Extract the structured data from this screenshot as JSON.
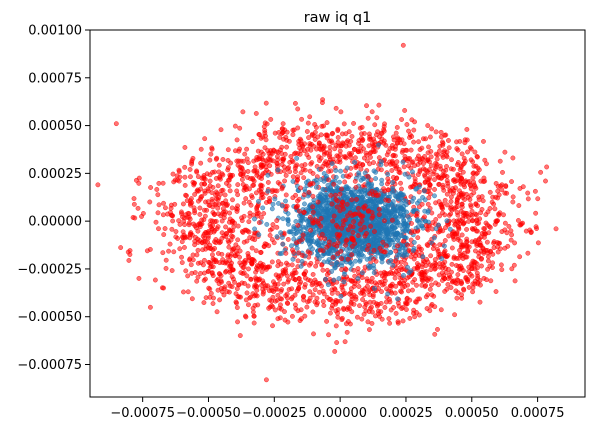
{
  "chart_data": {
    "type": "scatter",
    "title": "raw iq q1",
    "xlabel": "",
    "ylabel": "",
    "xlim": [
      -0.00095,
      0.00093
    ],
    "ylim": [
      -0.00092,
      0.001
    ],
    "grid": false,
    "xticks": [
      {
        "value": -0.00075,
        "label": "−0.00075"
      },
      {
        "value": -0.0005,
        "label": "−0.00050"
      },
      {
        "value": -0.00025,
        "label": "−0.00025"
      },
      {
        "value": 0.0,
        "label": "0.00000"
      },
      {
        "value": 0.00025,
        "label": "0.00025"
      },
      {
        "value": 0.0005,
        "label": "0.00050"
      },
      {
        "value": 0.00075,
        "label": "0.00075"
      }
    ],
    "yticks": [
      {
        "value": 0.001,
        "label": "0.00100"
      },
      {
        "value": 0.00075,
        "label": "0.00075"
      },
      {
        "value": 0.0005,
        "label": "0.00050"
      },
      {
        "value": 0.00025,
        "label": "0.00025"
      },
      {
        "value": 0.0,
        "label": "0.00000"
      },
      {
        "value": -0.00025,
        "label": "−0.00025"
      },
      {
        "value": -0.0005,
        "label": "−0.00050"
      },
      {
        "value": -0.00075,
        "label": "−0.00075"
      }
    ],
    "series": [
      {
        "color": "#ff0000",
        "alpha": 0.55,
        "center": [
          0.0,
          0.0
        ],
        "radius_x": 0.00052,
        "radius_y": 0.0004,
        "spread": 0.00011,
        "count": 2200
      },
      {
        "color": "#1f77b4",
        "alpha": 0.6,
        "center": [
          5e-05,
          0.0
        ],
        "sigma": [
          0.00012,
          0.00011
        ],
        "count": 1600
      }
    ],
    "extra_red_points": [
      {
        "x": -0.00092,
        "y": 0.00019
      },
      {
        "x": -0.00085,
        "y": 0.00051
      },
      {
        "x": 0.00024,
        "y": 0.00092
      },
      {
        "x": -0.00028,
        "y": -0.00083
      },
      {
        "x": 0.00078,
        "y": 0.00021
      },
      {
        "x": 0.00082,
        "y": -4e-05
      }
    ]
  }
}
